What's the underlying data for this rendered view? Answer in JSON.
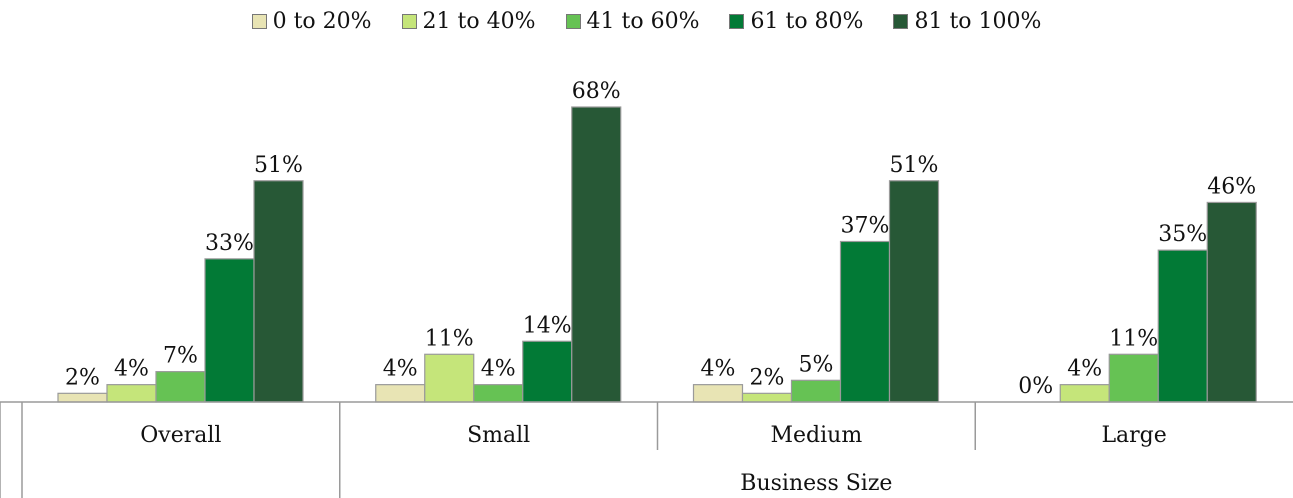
{
  "chart_data": {
    "type": "bar",
    "legend_position": "top",
    "group_axis_label": "Business Size",
    "categories": [
      "Overall",
      "Small",
      "Medium",
      "Large"
    ],
    "series": [
      {
        "name": "0 to 20%",
        "color": "#e8e4b4",
        "values": [
          2,
          4,
          4,
          0
        ],
        "labels": [
          "2%",
          "4%",
          "4%",
          "0%"
        ]
      },
      {
        "name": "21 to 40%",
        "color": "#c5e57a",
        "values": [
          4,
          11,
          2,
          4
        ],
        "labels": [
          "4%",
          "11%",
          "2%",
          "4%"
        ]
      },
      {
        "name": "41 to 60%",
        "color": "#66c254",
        "values": [
          7,
          4,
          5,
          11
        ],
        "labels": [
          "7%",
          "4%",
          "5%",
          "11%"
        ]
      },
      {
        "name": "61 to 80%",
        "color": "#027a36",
        "values": [
          33,
          14,
          37,
          35
        ],
        "labels": [
          "33%",
          "14%",
          "37%",
          "35%"
        ]
      },
      {
        "name": "81 to 100%",
        "color": "#275836",
        "values": [
          51,
          68,
          51,
          46
        ],
        "labels": [
          "51%",
          "68%",
          "51%",
          "46%"
        ]
      }
    ],
    "ylim": [
      0,
      70
    ],
    "grid": false
  }
}
